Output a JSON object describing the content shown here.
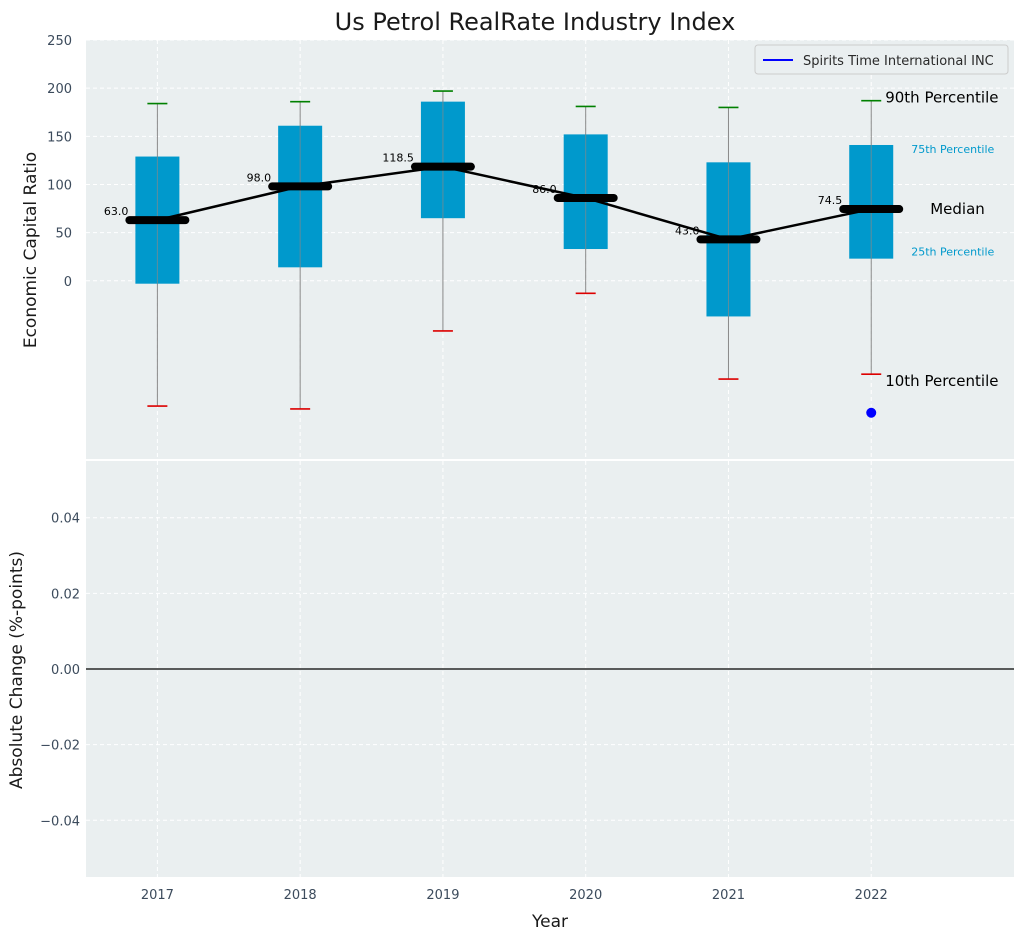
{
  "colors": {
    "panel_bg": "#eaeff0",
    "box": "#0099cc",
    "whisker": "#888888",
    "cap_high": "#008000",
    "cap_low": "#dd0000",
    "median": "#000000",
    "company": "#0000ff"
  },
  "chart_data": [
    {
      "type": "box",
      "title": "Us Petrol RealRate Industry Index",
      "xlabel": "Year",
      "ylabel": "Economic Capital Ratio",
      "categories": [
        "2017",
        "2018",
        "2019",
        "2020",
        "2021",
        "2022"
      ],
      "ylim": [
        -185,
        250
      ],
      "yticks": [
        0,
        50,
        100,
        150,
        200,
        250
      ],
      "percentile_10": [
        -130,
        -133,
        -52,
        -13,
        -102,
        -97
      ],
      "percentile_25": [
        -3,
        14,
        65,
        33,
        -37,
        23
      ],
      "median": [
        63.0,
        98.0,
        118.5,
        86.0,
        43.0,
        74.5
      ],
      "median_labels": [
        "63.0",
        "98.0",
        "118.5",
        "86.0",
        "43.0",
        "74.5"
      ],
      "percentile_75": [
        129,
        161,
        186,
        152,
        123,
        141
      ],
      "percentile_90": [
        184,
        186,
        197,
        181,
        180,
        187
      ],
      "company_series": {
        "name": "Spirits Time International INC",
        "points": [
          {
            "x": "2022",
            "y": -137
          }
        ]
      },
      "annotations": {
        "p90": "90th Percentile",
        "p75": "75th Percentile",
        "median": "Median",
        "p25": "25th Percentile",
        "p10": "10th Percentile"
      },
      "legend_position": "top-right",
      "grid": true
    },
    {
      "type": "line",
      "xlabel": "Year",
      "ylabel": "Absolute Change (%-points)",
      "categories": [
        "2017",
        "2018",
        "2019",
        "2020",
        "2021",
        "2022"
      ],
      "ylim": [
        -0.055,
        0.055
      ],
      "yticks": [
        -0.04,
        -0.02,
        0.0,
        0.02,
        0.04
      ],
      "ytick_labels": [
        "−0.04",
        "−0.02",
        "0.00",
        "0.02",
        "0.04"
      ],
      "reference_line": 0.0,
      "series": [],
      "grid": true
    }
  ]
}
